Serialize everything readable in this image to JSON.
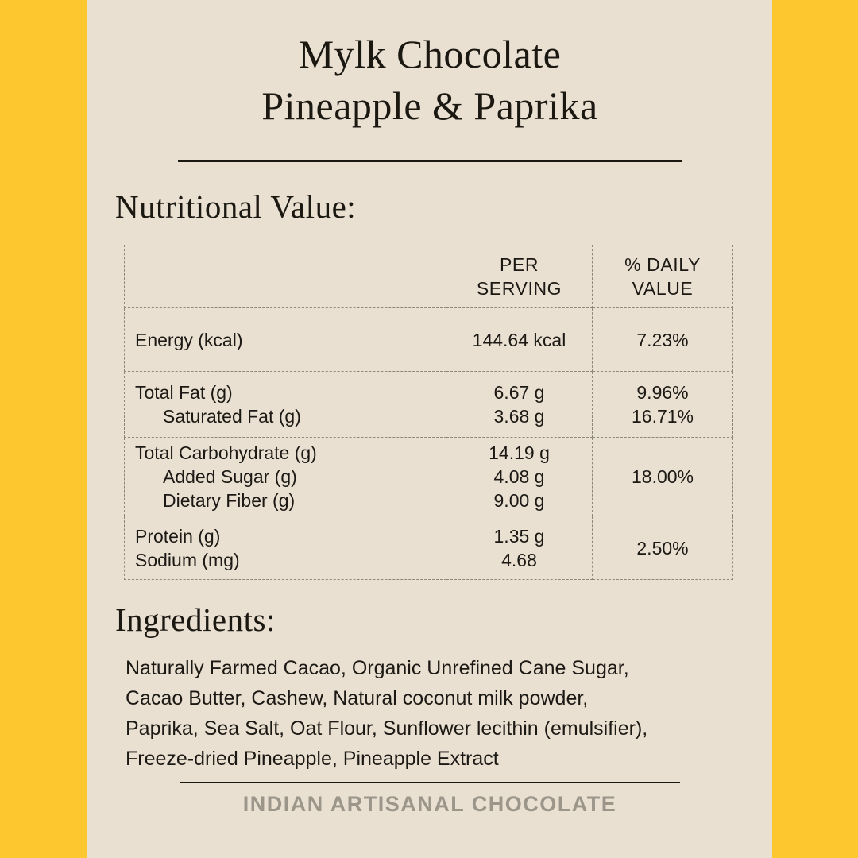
{
  "colors": {
    "background": "#FCC72F",
    "panel": "#E9E0D2",
    "text": "#1c1914",
    "table_border": "#8d877c",
    "footer_text": "#9b958a"
  },
  "title": {
    "line1": "Mylk Chocolate",
    "line2": "Pineapple & Paprika"
  },
  "nutrition": {
    "heading": "Nutritional Value:",
    "table": {
      "col_headers": [
        [
          "PER",
          "SERVING"
        ],
        [
          "% DAILY",
          "VALUE"
        ]
      ],
      "rows": [
        {
          "labels": [
            "Energy (kcal)"
          ],
          "values": [
            "144.64 kcal"
          ],
          "daily": [
            "7.23%"
          ]
        },
        {
          "labels": [
            "Total Fat (g)",
            "Saturated Fat (g)"
          ],
          "values": [
            "6.67 g",
            "3.68 g"
          ],
          "daily": [
            "9.96%",
            "16.71%"
          ]
        },
        {
          "labels": [
            "Total Carbohydrate (g)",
            "Added Sugar (g)",
            "Dietary Fiber (g)"
          ],
          "values": [
            "14.19 g",
            "4.08 g",
            "9.00 g"
          ],
          "daily": [
            "18.00%"
          ]
        },
        {
          "labels": [
            "Protein (g)",
            "Sodium (mg)"
          ],
          "values": [
            "1.35 g",
            "4.68"
          ],
          "daily": [
            "2.50%"
          ]
        }
      ]
    }
  },
  "ingredients": {
    "heading": "Ingredients:",
    "lines": [
      "Naturally Farmed Cacao, Organic Unrefined Cane Sugar,",
      "Cacao Butter, Cashew, Natural coconut milk powder,",
      "Paprika, Sea Salt, Oat Flour, Sunflower lecithin (emulsifier),",
      "Freeze-dried Pineapple, Pineapple Extract"
    ]
  },
  "footer": {
    "tagline": "INDIAN ARTISANAL CHOCOLATE"
  }
}
